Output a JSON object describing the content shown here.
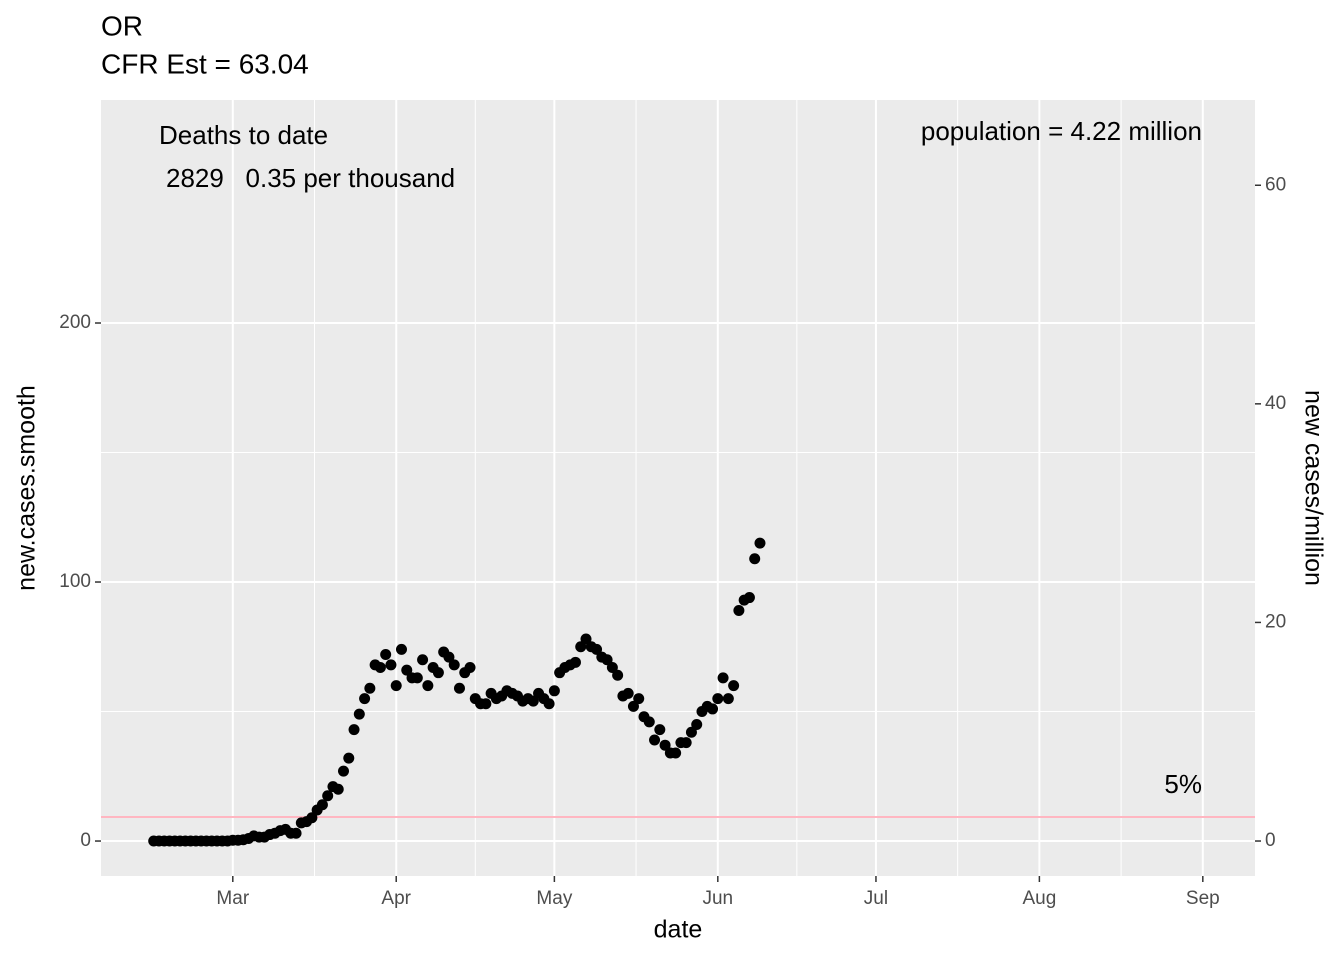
{
  "chart_data": {
    "type": "scatter",
    "title": "OR",
    "subtitle": "CFR Est = 63.04",
    "x_label": "date",
    "y_label": "new.cases.smooth",
    "y2_label": "new cases/million",
    "annotations": {
      "deaths_title": "Deaths to date",
      "deaths_line": "2829   0.35 per thousand",
      "population": "population = 4.22 million",
      "hline_label": "5%"
    },
    "hline": 9.3,
    "hline_color": "#ffb6c1",
    "color": "#000000",
    "grid": true,
    "xlim": [
      -25,
      193.9
    ],
    "xticks": [
      {
        "value": 0,
        "label": "Mar"
      },
      {
        "value": 31,
        "label": "Apr"
      },
      {
        "value": 61,
        "label": "May"
      },
      {
        "value": 92,
        "label": "Jun"
      },
      {
        "value": 122,
        "label": "Jul"
      },
      {
        "value": 153,
        "label": "Aug"
      },
      {
        "value": 184,
        "label": "Sep"
      }
    ],
    "ylim": [
      -13.5,
      286.1
    ],
    "yticks": [
      0,
      100,
      200
    ],
    "y2lim": [
      -3.2,
      67.8
    ],
    "y2ticks": [
      0,
      20,
      40,
      60
    ],
    "x": [
      -15,
      -14,
      -13,
      -12,
      -11,
      -10,
      -9,
      -8,
      -7,
      -6,
      -5,
      -4,
      -3,
      -2,
      -1,
      0,
      1,
      2,
      3,
      4,
      5,
      6,
      7,
      8,
      9,
      10,
      11,
      12,
      13,
      14,
      15,
      16,
      17,
      18,
      19,
      20,
      21,
      22,
      23,
      24,
      25,
      26,
      27,
      28,
      29,
      30,
      31,
      32,
      33,
      34,
      35,
      36,
      37,
      38,
      39,
      40,
      41,
      42,
      43,
      44,
      45,
      46,
      47,
      48,
      49,
      50,
      51,
      52,
      53,
      54,
      55,
      56,
      57,
      58,
      59,
      60,
      61,
      62,
      63,
      64,
      65,
      66,
      67,
      68,
      69,
      70,
      71,
      72,
      73,
      74,
      75,
      76,
      77,
      78,
      79,
      80,
      81,
      82,
      83,
      84,
      85,
      86,
      87,
      88,
      89,
      90,
      91,
      92,
      93,
      94,
      95,
      96,
      97,
      98,
      99,
      100
    ],
    "values": [
      0,
      0,
      0,
      0,
      0,
      0,
      0,
      0,
      0,
      0,
      0,
      0,
      0,
      0,
      0,
      0.3,
      0.3,
      0.5,
      1,
      2,
      1.5,
      1.5,
      2.5,
      3,
      4,
      4.5,
      3,
      3,
      7,
      7.5,
      9,
      12,
      14,
      17.5,
      21,
      20,
      27,
      32,
      43,
      49,
      55,
      59,
      68,
      67,
      72,
      68,
      60,
      74,
      66,
      63,
      63,
      70,
      60,
      67,
      65,
      73,
      71,
      68,
      59,
      65,
      67,
      55,
      53,
      53,
      57,
      55,
      56,
      58,
      57,
      56,
      54,
      55,
      54,
      57,
      55,
      53,
      58,
      65,
      67,
      68,
      69,
      75,
      78,
      75,
      74,
      71,
      70,
      67,
      64,
      56,
      57,
      52,
      55,
      48,
      46,
      39,
      43,
      37,
      34,
      34,
      38,
      38,
      42,
      45,
      50,
      52,
      51,
      55,
      63,
      55,
      60,
      89,
      93,
      94,
      109,
      115
    ]
  }
}
